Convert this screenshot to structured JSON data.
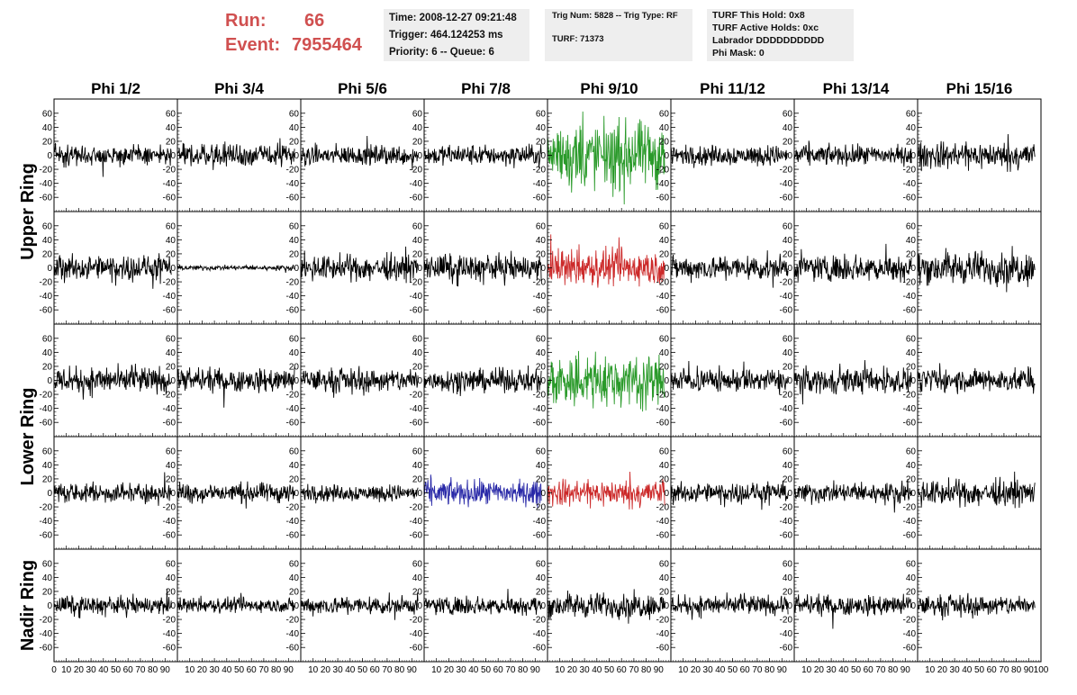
{
  "header": {
    "run_label": "Run:",
    "run_value": "66",
    "event_label": "Event:",
    "event_value": "7955464",
    "info1": [
      "Time: 2008-12-27 09:21:48",
      "Trigger: 464.124253 ms",
      "Priority: 6 -- Queue: 6"
    ],
    "info2": [
      "Trig Num: 5828 -- Trig Type: RF",
      "",
      "TURF: 71373"
    ],
    "info3": [
      "TURF This Hold: 0x8",
      "TURF Active Holds: 0xc",
      "Labrador DDDDDDDDDD",
      "Phi Mask: 0"
    ]
  },
  "colors": {
    "header_text": "#d05050",
    "info_bg": "#eeeeee",
    "trace_default": "#000000",
    "trace_green": "#2a9a2a",
    "trace_red": "#cc2a2a",
    "trace_blue": "#2a2aa8"
  },
  "chart_data": {
    "type": "line",
    "columns": [
      "Phi 1/2",
      "Phi 3/4",
      "Phi 5/6",
      "Phi 7/8",
      "Phi 9/10",
      "Phi 11/12",
      "Phi 13/14",
      "Phi 15/16"
    ],
    "rows": [
      "Upper Ring",
      "Lower Ring",
      "Nadir Ring"
    ],
    "subrows": 5,
    "ylim": [
      -70,
      70
    ],
    "yticks": [
      -60,
      -40,
      -20,
      0,
      20,
      40,
      60
    ],
    "xlim": [
      0,
      100
    ],
    "xticks": [
      0,
      10,
      20,
      30,
      40,
      50,
      60,
      70,
      80,
      90,
      100
    ],
    "samples": 250,
    "xmax_data": 95,
    "amplitudes": [
      [
        12,
        14,
        12,
        12,
        40,
        12,
        12,
        16
      ],
      [
        15,
        3,
        15,
        16,
        22,
        15,
        16,
        20
      ],
      [
        16,
        14,
        14,
        14,
        32,
        14,
        15,
        14
      ],
      [
        12,
        12,
        10,
        15,
        16,
        12,
        12,
        15
      ],
      [
        11,
        9,
        11,
        11,
        15,
        12,
        12,
        12
      ]
    ],
    "trace_colors": [
      [
        "default",
        "default",
        "default",
        "default",
        "green",
        "default",
        "default",
        "default"
      ],
      [
        "default",
        "default",
        "default",
        "default",
        "red",
        "default",
        "default",
        "default"
      ],
      [
        "default",
        "default",
        "default",
        "default",
        "green",
        "default",
        "default",
        "default"
      ],
      [
        "default",
        "default",
        "default",
        "blue",
        "red",
        "default",
        "default",
        "default"
      ],
      [
        "default",
        "default",
        "default",
        "default",
        "default",
        "default",
        "default",
        "default"
      ]
    ]
  }
}
